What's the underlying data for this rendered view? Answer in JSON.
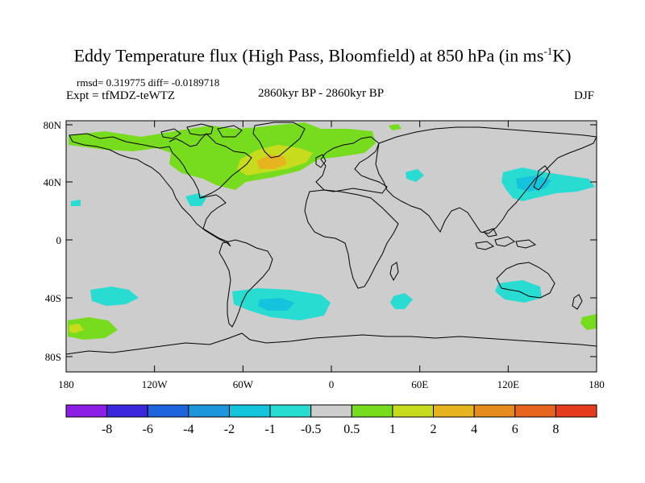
{
  "title": {
    "main": "Eddy Temperature flux (High Pass, Bloomfield) at 850 hPa (in ms",
    "sup": "-1",
    "tail": "K)"
  },
  "header": {
    "rmsd": "rmsd= 0.319775 diff= -0.0189718",
    "expt": "Expt = tfMDZ-teWTZ",
    "period": "2860kyr BP - 2860kyr BP",
    "season": "DJF"
  },
  "axes": {
    "lat_labels": [
      "80N",
      "40N",
      "0",
      "40S",
      "80S"
    ],
    "lon_labels": [
      "180",
      "120W",
      "60W",
      "0",
      "60E",
      "120E",
      "180"
    ]
  },
  "colorbar": {
    "labels": [
      "-8",
      "-6",
      "-4",
      "-2",
      "-1",
      "-0.5",
      "0.5",
      "1",
      "2",
      "4",
      "6",
      "8"
    ],
    "colors": [
      "#8c1ee6",
      "#3c28dc",
      "#1e64dc",
      "#1e96dc",
      "#14c3dc",
      "#28dcd2",
      "#cdcdcd",
      "#78dc1e",
      "#c8dc1e",
      "#e6b41e",
      "#e68c1e",
      "#e6641e",
      "#e63c1e"
    ]
  },
  "map": {
    "background": "#cdcdcd",
    "fields": [
      {
        "name": "north-atlantic-positive",
        "color": "#78dc1e"
      },
      {
        "name": "north-atlantic-core",
        "color": "#c8dc1e"
      },
      {
        "name": "north-atlantic-peak",
        "color": "#e6b41e"
      },
      {
        "name": "north-pacific-negative",
        "color": "#28dcd2"
      },
      {
        "name": "north-pacific-core",
        "color": "#14c3dc"
      },
      {
        "name": "south-atlantic-negative",
        "color": "#28dcd2"
      },
      {
        "name": "south-atlantic-core",
        "color": "#14c3dc"
      },
      {
        "name": "south-pacific-positive",
        "color": "#78dc1e"
      },
      {
        "name": "south-pacific-core",
        "color": "#c8dc1e"
      }
    ]
  }
}
